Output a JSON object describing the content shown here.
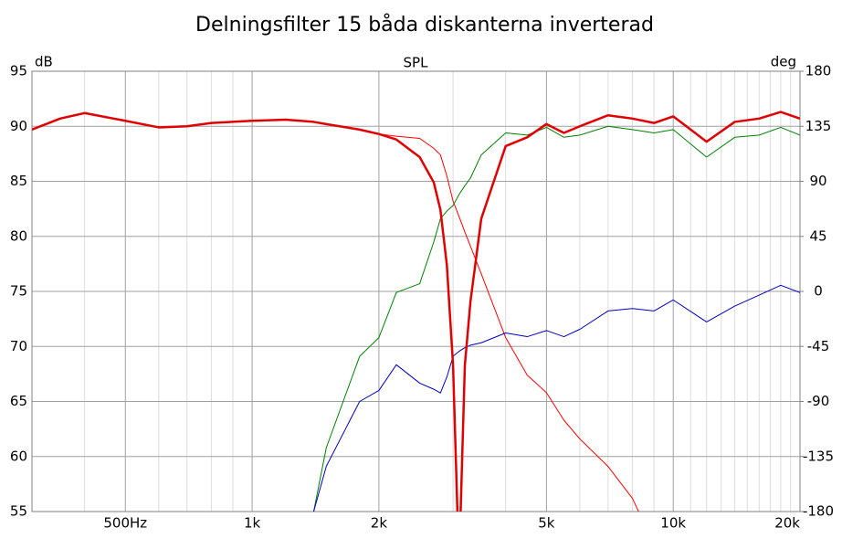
{
  "chart_data": {
    "type": "line",
    "title": "Delningsfilter 15 båda diskanterna inverterad",
    "subtitle": "SPL",
    "ylabel": "dB",
    "y2label": "deg",
    "log_x": true,
    "grid": true,
    "xlim": [
      300,
      20000
    ],
    "xticks": [
      {
        "value": 500,
        "label": "500Hz"
      },
      {
        "value": 1000,
        "label": "1k"
      },
      {
        "value": 2000,
        "label": "2k"
      },
      {
        "value": 5000,
        "label": "5k"
      },
      {
        "value": 10000,
        "label": "10k"
      },
      {
        "value": 20000,
        "label": "20k"
      }
    ],
    "xgrid_minor": [
      300,
      400,
      600,
      700,
      800,
      900,
      3000,
      4000,
      6000,
      7000,
      8000,
      9000,
      11000,
      12000,
      13000,
      14000,
      15000,
      16000,
      17000,
      18000,
      19000
    ],
    "ylim": [
      55,
      95
    ],
    "yticks": [
      55,
      60,
      65,
      70,
      75,
      80,
      85,
      90,
      95
    ],
    "y2lim": [
      -180,
      180
    ],
    "y2ticks": [
      -180,
      -135,
      -90,
      -45,
      0,
      45,
      90,
      135,
      180
    ],
    "x": [
      300,
      350,
      400,
      500,
      600,
      700,
      800,
      1000,
      1200,
      1400,
      1500,
      1800,
      2000,
      2200,
      2500,
      2700,
      2800,
      2900,
      3000,
      3100,
      3200,
      3300,
      3500,
      4000,
      4500,
      5000,
      5500,
      6000,
      7000,
      8000,
      9000,
      10000,
      12000,
      14000,
      16000,
      18000,
      20000
    ],
    "series": [
      {
        "color": "#ff0000",
        "width": 1,
        "values": [
          89.7,
          90.7,
          91.2,
          90.5,
          89.9,
          90.0,
          90.3,
          90.5,
          90.6,
          90.4,
          90.2,
          89.7,
          89.3,
          89.1,
          88.9,
          88.0,
          87.4,
          85.5,
          83.2,
          81.8,
          80.4,
          79.1,
          76.6,
          70.8,
          67.4,
          65.8,
          63.3,
          61.6,
          59.1,
          56.2,
          52,
          null,
          null,
          null,
          null,
          null,
          null
        ]
      },
      {
        "color": "#008000",
        "width": 1,
        "values": [
          null,
          null,
          null,
          null,
          null,
          null,
          null,
          null,
          null,
          55,
          60.8,
          69.1,
          70.8,
          74.9,
          75.7,
          79.5,
          81.6,
          82.3,
          82.8,
          83.8,
          84.6,
          85.3,
          87.4,
          89.4,
          89.2,
          89.9,
          89.0,
          89.2,
          90.0,
          89.7,
          89.4,
          89.7,
          87.2,
          89.0,
          89.2,
          89.9,
          89.2
        ]
      },
      {
        "color": "#0000c0",
        "width": 1,
        "axis": "y2",
        "values": [
          null,
          null,
          null,
          null,
          null,
          null,
          null,
          null,
          null,
          -180,
          -143,
          -90,
          -81,
          -60,
          -75,
          -80,
          -83,
          -70,
          -53,
          -49,
          -46,
          -44,
          -42,
          -34,
          -37,
          -32,
          -37,
          -31,
          -16,
          -14,
          -16,
          -7,
          -25,
          -12,
          -3,
          5,
          -1
        ]
      },
      {
        "color": "#e00000",
        "width": 2.5,
        "values": [
          89.7,
          90.7,
          91.2,
          90.5,
          89.9,
          90.0,
          90.3,
          90.5,
          90.6,
          90.4,
          90.2,
          89.7,
          89.3,
          88.8,
          87.2,
          84.9,
          82.4,
          77.4,
          68.3,
          50,
          68.3,
          74.1,
          81.6,
          88.2,
          89.0,
          90.2,
          89.4,
          90.0,
          91.0,
          90.7,
          90.3,
          90.9,
          88.6,
          90.4,
          90.7,
          91.3,
          90.7
        ]
      }
    ]
  }
}
